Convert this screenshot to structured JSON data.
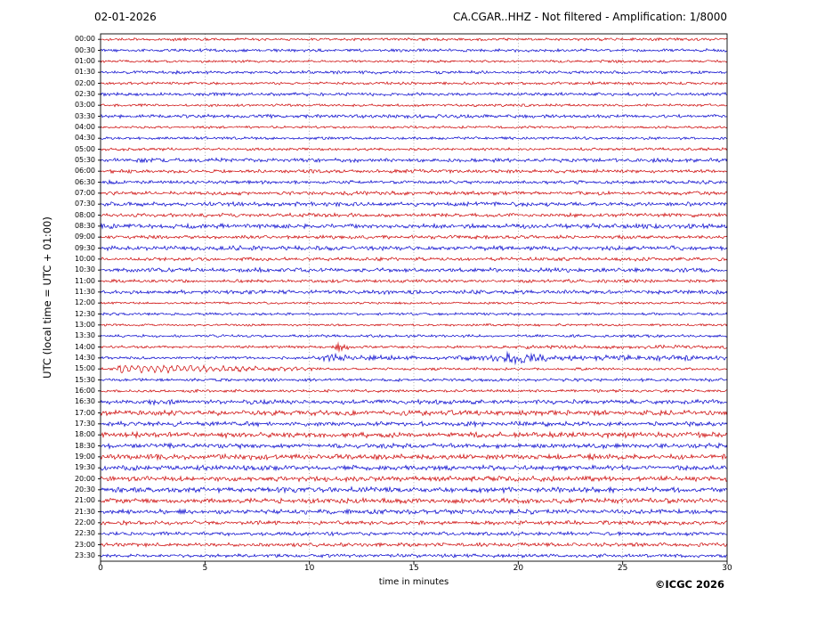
{
  "header": {
    "date": "02-01-2026",
    "title": "CA.CGAR..HHZ - Not filtered - Amplification: 1/8000"
  },
  "footer": {
    "copyright": "©ICGC 2026"
  },
  "chart_data": {
    "type": "line",
    "subtype": "helicorder-seismogram",
    "title": "CA.CGAR..HHZ - Not filtered - Amplification: 1/8000",
    "date": "02-01-2026",
    "xlabel": "time in minutes",
    "ylabel": "UTC (local time = UTC + 01:00)",
    "x_range": [
      0,
      30
    ],
    "x_ticks": [
      0,
      5,
      10,
      15,
      20,
      25,
      30
    ],
    "grid_minutes": [
      5,
      10,
      15,
      20,
      25
    ],
    "minutes_per_row": 30,
    "grid": "dotted-vertical",
    "legend": "none",
    "colors": {
      "red": "#cc0000",
      "blue": "#0000cc",
      "grid": "#8a8a8a",
      "axis": "#000000"
    },
    "rows": [
      {
        "label": "00:00",
        "color": "red",
        "amp": 1.2
      },
      {
        "label": "00:30",
        "color": "blue",
        "amp": 1.3
      },
      {
        "label": "01:00",
        "color": "red",
        "amp": 1.1
      },
      {
        "label": "01:30",
        "color": "blue",
        "amp": 1.3
      },
      {
        "label": "02:00",
        "color": "red",
        "amp": 1.2
      },
      {
        "label": "02:30",
        "color": "blue",
        "amp": 1.4
      },
      {
        "label": "03:00",
        "color": "red",
        "amp": 1.1
      },
      {
        "label": "03:30",
        "color": "blue",
        "amp": 1.5
      },
      {
        "label": "04:00",
        "color": "red",
        "amp": 1.1
      },
      {
        "label": "04:30",
        "color": "blue",
        "amp": 1.2
      },
      {
        "label": "05:00",
        "color": "red",
        "amp": 1.2
      },
      {
        "label": "05:30",
        "color": "blue",
        "amp": 1.7
      },
      {
        "label": "06:00",
        "color": "red",
        "amp": 1.5
      },
      {
        "label": "06:30",
        "color": "blue",
        "amp": 1.5
      },
      {
        "label": "07:00",
        "color": "red",
        "amp": 1.6
      },
      {
        "label": "07:30",
        "color": "blue",
        "amp": 1.8
      },
      {
        "label": "08:00",
        "color": "red",
        "amp": 1.6
      },
      {
        "label": "08:30",
        "color": "blue",
        "amp": 2.0
      },
      {
        "label": "09:00",
        "color": "red",
        "amp": 1.5
      },
      {
        "label": "09:30",
        "color": "blue",
        "amp": 1.9,
        "events": [
          {
            "kind": "burst",
            "start": 21.5,
            "end": 22.4,
            "amp": 2.6
          }
        ]
      },
      {
        "label": "10:00",
        "color": "red",
        "amp": 1.5
      },
      {
        "label": "10:30",
        "color": "blue",
        "amp": 1.8
      },
      {
        "label": "11:00",
        "color": "red",
        "amp": 1.4
      },
      {
        "label": "11:30",
        "color": "blue",
        "amp": 1.7
      },
      {
        "label": "12:00",
        "color": "red",
        "amp": 1.0
      },
      {
        "label": "12:30",
        "color": "blue",
        "amp": 1.1
      },
      {
        "label": "13:00",
        "color": "red",
        "amp": 1.0
      },
      {
        "label": "13:30",
        "color": "blue",
        "amp": 1.2
      },
      {
        "label": "14:00",
        "color": "red",
        "amp": 1.1,
        "events": [
          {
            "kind": "burst",
            "start": 11.0,
            "end": 12.0,
            "amp": 3.4
          },
          {
            "kind": "sustain",
            "start": 19.0,
            "end": 30,
            "amp": 1.6
          }
        ]
      },
      {
        "label": "14:30",
        "color": "blue",
        "amp": 1.2,
        "events": [
          {
            "kind": "sustain",
            "start": 10.0,
            "end": 30,
            "amp": 2.3
          },
          {
            "kind": "burst",
            "start": 10.0,
            "end": 12.2,
            "amp": 3.4
          },
          {
            "kind": "burst",
            "start": 18.3,
            "end": 21.8,
            "amp": 5.2
          }
        ]
      },
      {
        "label": "15:00",
        "color": "red",
        "amp": 1.1,
        "events": [
          {
            "kind": "ringing",
            "start": 0.8,
            "end": 13.0,
            "amp": 3.4,
            "freq": 3.2
          }
        ]
      },
      {
        "label": "15:30",
        "color": "blue",
        "amp": 1.3
      },
      {
        "label": "16:00",
        "color": "red",
        "amp": 1.2
      },
      {
        "label": "16:30",
        "color": "blue",
        "amp": 1.9,
        "events": [
          {
            "kind": "burst",
            "start": 0.2,
            "end": 5.0,
            "amp": 2.3
          }
        ]
      },
      {
        "label": "17:00",
        "color": "red",
        "amp": 2.2
      },
      {
        "label": "17:30",
        "color": "blue",
        "amp": 2.0
      },
      {
        "label": "18:00",
        "color": "red",
        "amp": 2.3
      },
      {
        "label": "18:30",
        "color": "blue",
        "amp": 2.1
      },
      {
        "label": "19:00",
        "color": "red",
        "amp": 2.3
      },
      {
        "label": "19:30",
        "color": "blue",
        "amp": 2.0
      },
      {
        "label": "20:00",
        "color": "red",
        "amp": 2.2
      },
      {
        "label": "20:30",
        "color": "blue",
        "amp": 2.3
      },
      {
        "label": "21:00",
        "color": "red",
        "amp": 2.2,
        "events": [
          {
            "kind": "burst",
            "start": 11.2,
            "end": 12.2,
            "amp": 3.2
          }
        ]
      },
      {
        "label": "21:30",
        "color": "blue",
        "amp": 2.0
      },
      {
        "label": "22:00",
        "color": "red",
        "amp": 1.8
      },
      {
        "label": "22:30",
        "color": "blue",
        "amp": 1.6
      },
      {
        "label": "23:00",
        "color": "red",
        "amp": 1.6
      },
      {
        "label": "23:30",
        "color": "blue",
        "amp": 1.5
      }
    ]
  }
}
